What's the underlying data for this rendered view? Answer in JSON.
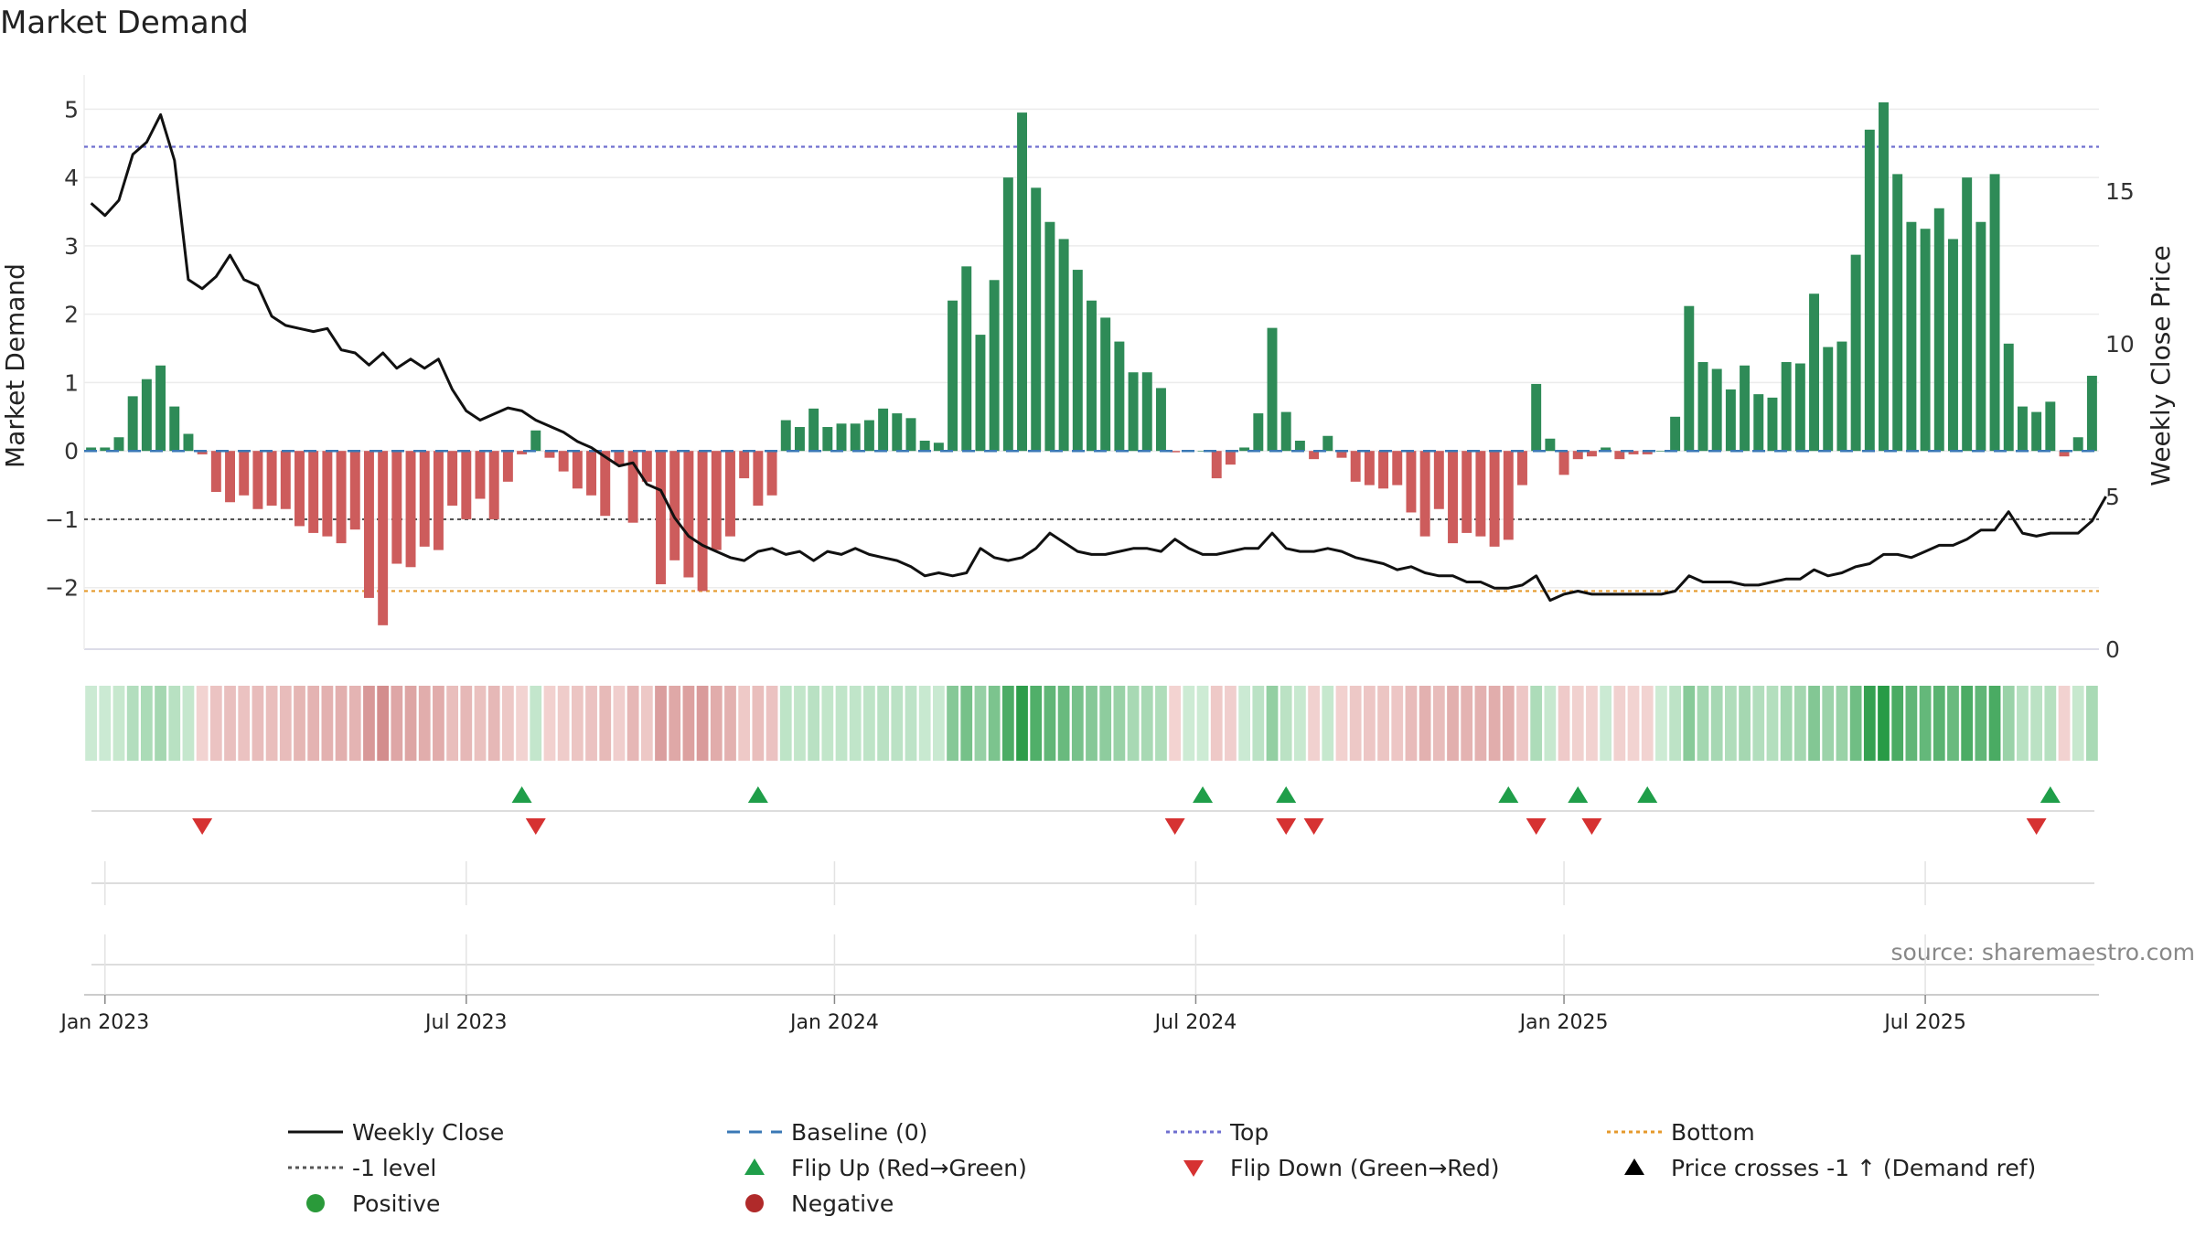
{
  "chart_data": {
    "type": "bar",
    "title": "Market Demand",
    "ylabel": "Market Demand",
    "y2label": "Weekly Close Price",
    "ylim": [
      -2.9,
      5.5
    ],
    "y2lim": [
      0,
      18.8
    ],
    "yticks": [
      -2,
      -1,
      0,
      1,
      2,
      3,
      4,
      5
    ],
    "y2ticks": [
      0,
      5,
      10,
      15
    ],
    "top_level": 4.45,
    "bottom_level": -2.05,
    "minus1_level": -1,
    "source": "source: sharemaestro.com",
    "x_tick_labels": [
      {
        "label": "Jan 2023",
        "week": 1
      },
      {
        "label": "Jul 2023",
        "week": 27
      },
      {
        "label": "Jan 2024",
        "week": 53.5
      },
      {
        "label": "Jul 2024",
        "week": 79.5
      },
      {
        "label": "Jan 2025",
        "week": 106
      },
      {
        "label": "Jul 2025",
        "week": 132
      }
    ],
    "demand": [
      0.05,
      0.05,
      0.2,
      0.8,
      1.05,
      1.25,
      0.65,
      0.25,
      -0.05,
      -0.6,
      -0.75,
      -0.65,
      -0.85,
      -0.8,
      -0.85,
      -1.1,
      -1.2,
      -1.25,
      -1.35,
      -1.15,
      -2.15,
      -2.55,
      -1.65,
      -1.7,
      -1.4,
      -1.45,
      -0.8,
      -1.0,
      -0.7,
      -1.0,
      -0.45,
      -0.05,
      0.3,
      -0.1,
      -0.3,
      -0.55,
      -0.65,
      -0.95,
      -0.2,
      -1.05,
      -0.45,
      -1.95,
      -1.6,
      -1.85,
      -2.05,
      -1.45,
      -1.25,
      -0.4,
      -0.8,
      -0.65,
      0.45,
      0.35,
      0.62,
      0.35,
      0.4,
      0.4,
      0.45,
      0.62,
      0.55,
      0.48,
      0.15,
      0.12,
      2.2,
      2.7,
      1.7,
      2.5,
      4.0,
      4.95,
      3.85,
      3.35,
      3.1,
      2.65,
      2.2,
      1.95,
      1.6,
      1.15,
      1.15,
      0.92,
      -0.02,
      0.0,
      0.0,
      -0.4,
      -0.2,
      0.05,
      0.55,
      1.8,
      0.57,
      0.15,
      -0.12,
      0.22,
      -0.1,
      -0.45,
      -0.5,
      -0.55,
      -0.5,
      -0.9,
      -1.25,
      -0.85,
      -1.35,
      -1.2,
      -1.25,
      -1.4,
      -1.3,
      -0.5,
      0.98,
      0.18,
      -0.35,
      -0.12,
      -0.08,
      0.05,
      -0.12,
      -0.05,
      -0.05,
      0.0,
      0.5,
      2.12,
      1.3,
      1.2,
      0.9,
      1.25,
      0.83,
      0.78,
      1.3,
      1.28,
      2.3,
      1.52,
      1.6,
      2.87,
      4.7,
      5.1,
      4.05,
      3.35,
      3.25,
      3.55,
      3.1,
      4.0,
      3.35,
      4.05,
      1.57,
      0.65,
      0.57,
      0.72,
      -0.08,
      0.2,
      1.1
    ],
    "price": [
      14.6,
      14.2,
      14.7,
      16.2,
      16.6,
      17.5,
      16.0,
      12.1,
      11.8,
      12.2,
      12.9,
      12.1,
      11.9,
      10.9,
      10.6,
      10.5,
      10.4,
      10.5,
      9.8,
      9.7,
      9.3,
      9.7,
      9.2,
      9.5,
      9.2,
      9.5,
      8.5,
      7.8,
      7.5,
      7.7,
      7.9,
      7.8,
      7.5,
      7.3,
      7.1,
      6.8,
      6.6,
      6.3,
      6.0,
      6.1,
      5.4,
      5.2,
      4.3,
      3.7,
      3.4,
      3.2,
      3.0,
      2.9,
      3.2,
      3.3,
      3.1,
      3.2,
      2.9,
      3.2,
      3.1,
      3.3,
      3.1,
      3.0,
      2.9,
      2.7,
      2.4,
      2.5,
      2.4,
      2.5,
      3.3,
      3.0,
      2.9,
      3.0,
      3.3,
      3.8,
      3.5,
      3.2,
      3.1,
      3.1,
      3.2,
      3.3,
      3.3,
      3.2,
      3.6,
      3.3,
      3.1,
      3.1,
      3.2,
      3.3,
      3.3,
      3.8,
      3.3,
      3.2,
      3.2,
      3.3,
      3.2,
      3.0,
      2.9,
      2.8,
      2.6,
      2.7,
      2.5,
      2.4,
      2.4,
      2.2,
      2.2,
      2.0,
      2.0,
      2.1,
      2.4,
      1.6,
      1.8,
      1.9,
      1.8,
      1.8,
      1.8,
      1.8,
      1.8,
      1.8,
      1.9,
      2.4,
      2.2,
      2.2,
      2.2,
      2.1,
      2.1,
      2.2,
      2.3,
      2.3,
      2.6,
      2.4,
      2.5,
      2.7,
      2.8,
      3.1,
      3.1,
      3.0,
      3.2,
      3.4,
      3.4,
      3.6,
      3.9,
      3.9,
      4.5,
      3.8,
      3.7,
      3.8,
      3.8,
      3.8,
      4.2,
      5.0
    ],
    "flip_up_weeks": [
      31,
      48,
      80,
      86,
      102,
      107,
      112,
      141
    ],
    "flip_down_weeks": [
      8,
      32,
      78,
      86,
      88,
      104,
      108,
      140
    ],
    "legend": [
      {
        "label": "Weekly Close",
        "kind": "line",
        "color": "#111111"
      },
      {
        "label": "Baseline (0)",
        "kind": "dash",
        "color": "#3a78b5"
      },
      {
        "label": "Top",
        "kind": "dot",
        "color": "#6f6fcf"
      },
      {
        "label": "Bottom",
        "kind": "dot",
        "color": "#e59a2c"
      },
      {
        "label": "-1 level",
        "kind": "dot",
        "color": "#555555"
      },
      {
        "label": "Flip Up (Red→Green)",
        "kind": "tri-up",
        "color": "#1f9e49"
      },
      {
        "label": "Flip Down (Green→Red)",
        "kind": "tri-down",
        "color": "#d63232"
      },
      {
        "label": "Price crosses -1 ↑ (Demand ref)",
        "kind": "tri-up",
        "color": "#000000"
      },
      {
        "label": "Positive",
        "kind": "circle",
        "color": "#2a9a3a"
      },
      {
        "label": "Negative",
        "kind": "circle",
        "color": "#b02a2a"
      }
    ],
    "colors": {
      "positive": "#2e8b57",
      "negative": "#cd5c5c",
      "price": "#111111",
      "baseline": "#3a78b5",
      "top": "#6f6fcf",
      "bottom": "#e59a2c",
      "minus1": "#555555"
    }
  }
}
